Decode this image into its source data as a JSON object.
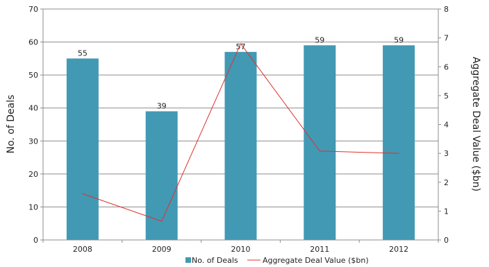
{
  "chart_data": {
    "type": "bar",
    "categories": [
      "2008",
      "2009",
      "2010",
      "2011",
      "2012"
    ],
    "series": [
      {
        "name": "No. of Deals",
        "type": "bar",
        "axis": "left",
        "values": [
          55,
          39,
          57,
          59,
          59
        ],
        "color": "#4299B4"
      },
      {
        "name": "Aggregate Deal Value ($bn)",
        "type": "line",
        "axis": "right",
        "values": [
          1.6,
          0.65,
          6.8,
          3.08,
          3.0
        ],
        "color": "#E03030"
      }
    ],
    "bar_labels": [
      "55",
      "39",
      "57",
      "59",
      "59"
    ],
    "ylabel_left": "No. of Deals",
    "ylabel_right": "Aggregate Deal Value ($bn)",
    "ylim_left": [
      0,
      70
    ],
    "yticks_left": [
      0,
      10,
      20,
      30,
      40,
      50,
      60,
      70
    ],
    "ylim_right": [
      0,
      8
    ],
    "yticks_right": [
      0,
      1,
      2,
      3,
      4,
      5,
      6,
      7,
      8
    ],
    "grid": true,
    "legend_position": "bottom"
  }
}
